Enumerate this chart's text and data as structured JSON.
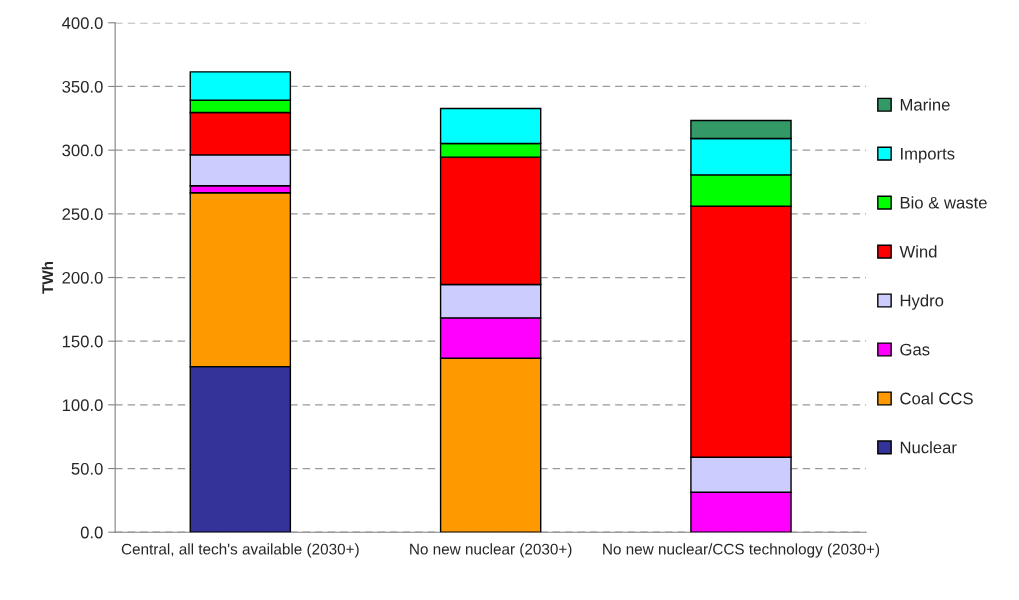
{
  "chart_data": {
    "type": "bar",
    "stacked": true,
    "ylabel": "TWh",
    "categories": [
      "Central, all tech's available (2030+)",
      "No new nuclear (2030+)",
      "No new nuclear/CCS technology (2030+)"
    ],
    "series": [
      {
        "name": "Nuclear",
        "color": "#333399",
        "values": [
          130,
          0,
          0
        ]
      },
      {
        "name": "Coal CCS",
        "color": "#ff9900",
        "values": [
          136.5,
          136.6,
          0
        ]
      },
      {
        "name": "Gas",
        "color": "#ff00ff",
        "values": [
          5.5,
          31.7,
          31.4
        ]
      },
      {
        "name": "Hydro",
        "color": "#ccccff",
        "values": [
          24.3,
          26.2,
          27.5
        ]
      },
      {
        "name": "Wind",
        "color": "#ff0000",
        "values": [
          33.3,
          100,
          197.1
        ]
      },
      {
        "name": "Bio & waste",
        "color": "#00ff00",
        "values": [
          9.7,
          10.7,
          24.6
        ]
      },
      {
        "name": "Imports",
        "color": "#00ffff",
        "values": [
          22.2,
          27.5,
          28.6
        ]
      },
      {
        "name": "Marine",
        "color": "#339966",
        "values": [
          0,
          0,
          14.1
        ]
      }
    ],
    "ylim": [
      0,
      400
    ],
    "yticks": [
      {
        "value": 0,
        "label": "0.0"
      },
      {
        "value": 50,
        "label": "50.0"
      },
      {
        "value": 100,
        "label": "100.0"
      },
      {
        "value": 150,
        "label": "150.0"
      },
      {
        "value": 200,
        "label": "200.0"
      },
      {
        "value": 250,
        "label": "250.0"
      },
      {
        "value": 300,
        "label": "300.0"
      },
      {
        "value": 350,
        "label": "350.0"
      },
      {
        "value": 400,
        "label": "400.0"
      }
    ],
    "grid": "y",
    "legend": "right"
  }
}
